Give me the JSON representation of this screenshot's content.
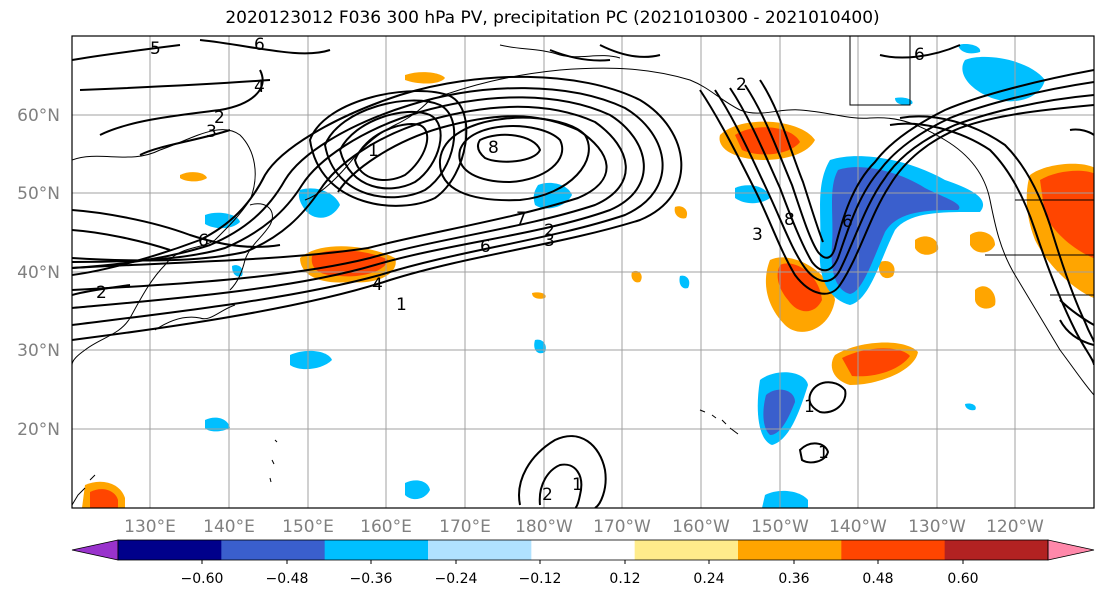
{
  "title": "2020123012 F036 300 hPa PV, precipitation PC (2021010300 - 2021010400)",
  "map": {
    "lat_labels": [
      "60°N",
      "50°N",
      "40°N",
      "30°N",
      "20°N"
    ],
    "lon_labels": [
      "130°E",
      "140°E",
      "150°E",
      "160°E",
      "170°E",
      "180°W",
      "170°W",
      "160°W",
      "150°W",
      "140°W",
      "130°W",
      "120°W"
    ],
    "gridlines": true,
    "pv_contour_labels": [
      "5",
      "6",
      "4",
      "2",
      "3",
      "1",
      "8",
      "7",
      "6",
      "3",
      "2",
      "6",
      "4",
      "1",
      "2",
      "8",
      "6",
      "3",
      "2",
      "6",
      "1",
      "1",
      "2",
      "1"
    ]
  },
  "colorbar": {
    "ticks": [
      "−0.60",
      "−0.48",
      "−0.36",
      "−0.24",
      "−0.12",
      "0.12",
      "0.24",
      "0.36",
      "0.48",
      "0.60"
    ],
    "colors": [
      "#9932cc",
      "#00008b",
      "#3a5fcd",
      "#00bfff",
      "#b0e2ff",
      "#ffffff",
      "#ffec8b",
      "#ffa500",
      "#ff4500",
      "#b22222",
      "#ff88aa"
    ]
  }
}
